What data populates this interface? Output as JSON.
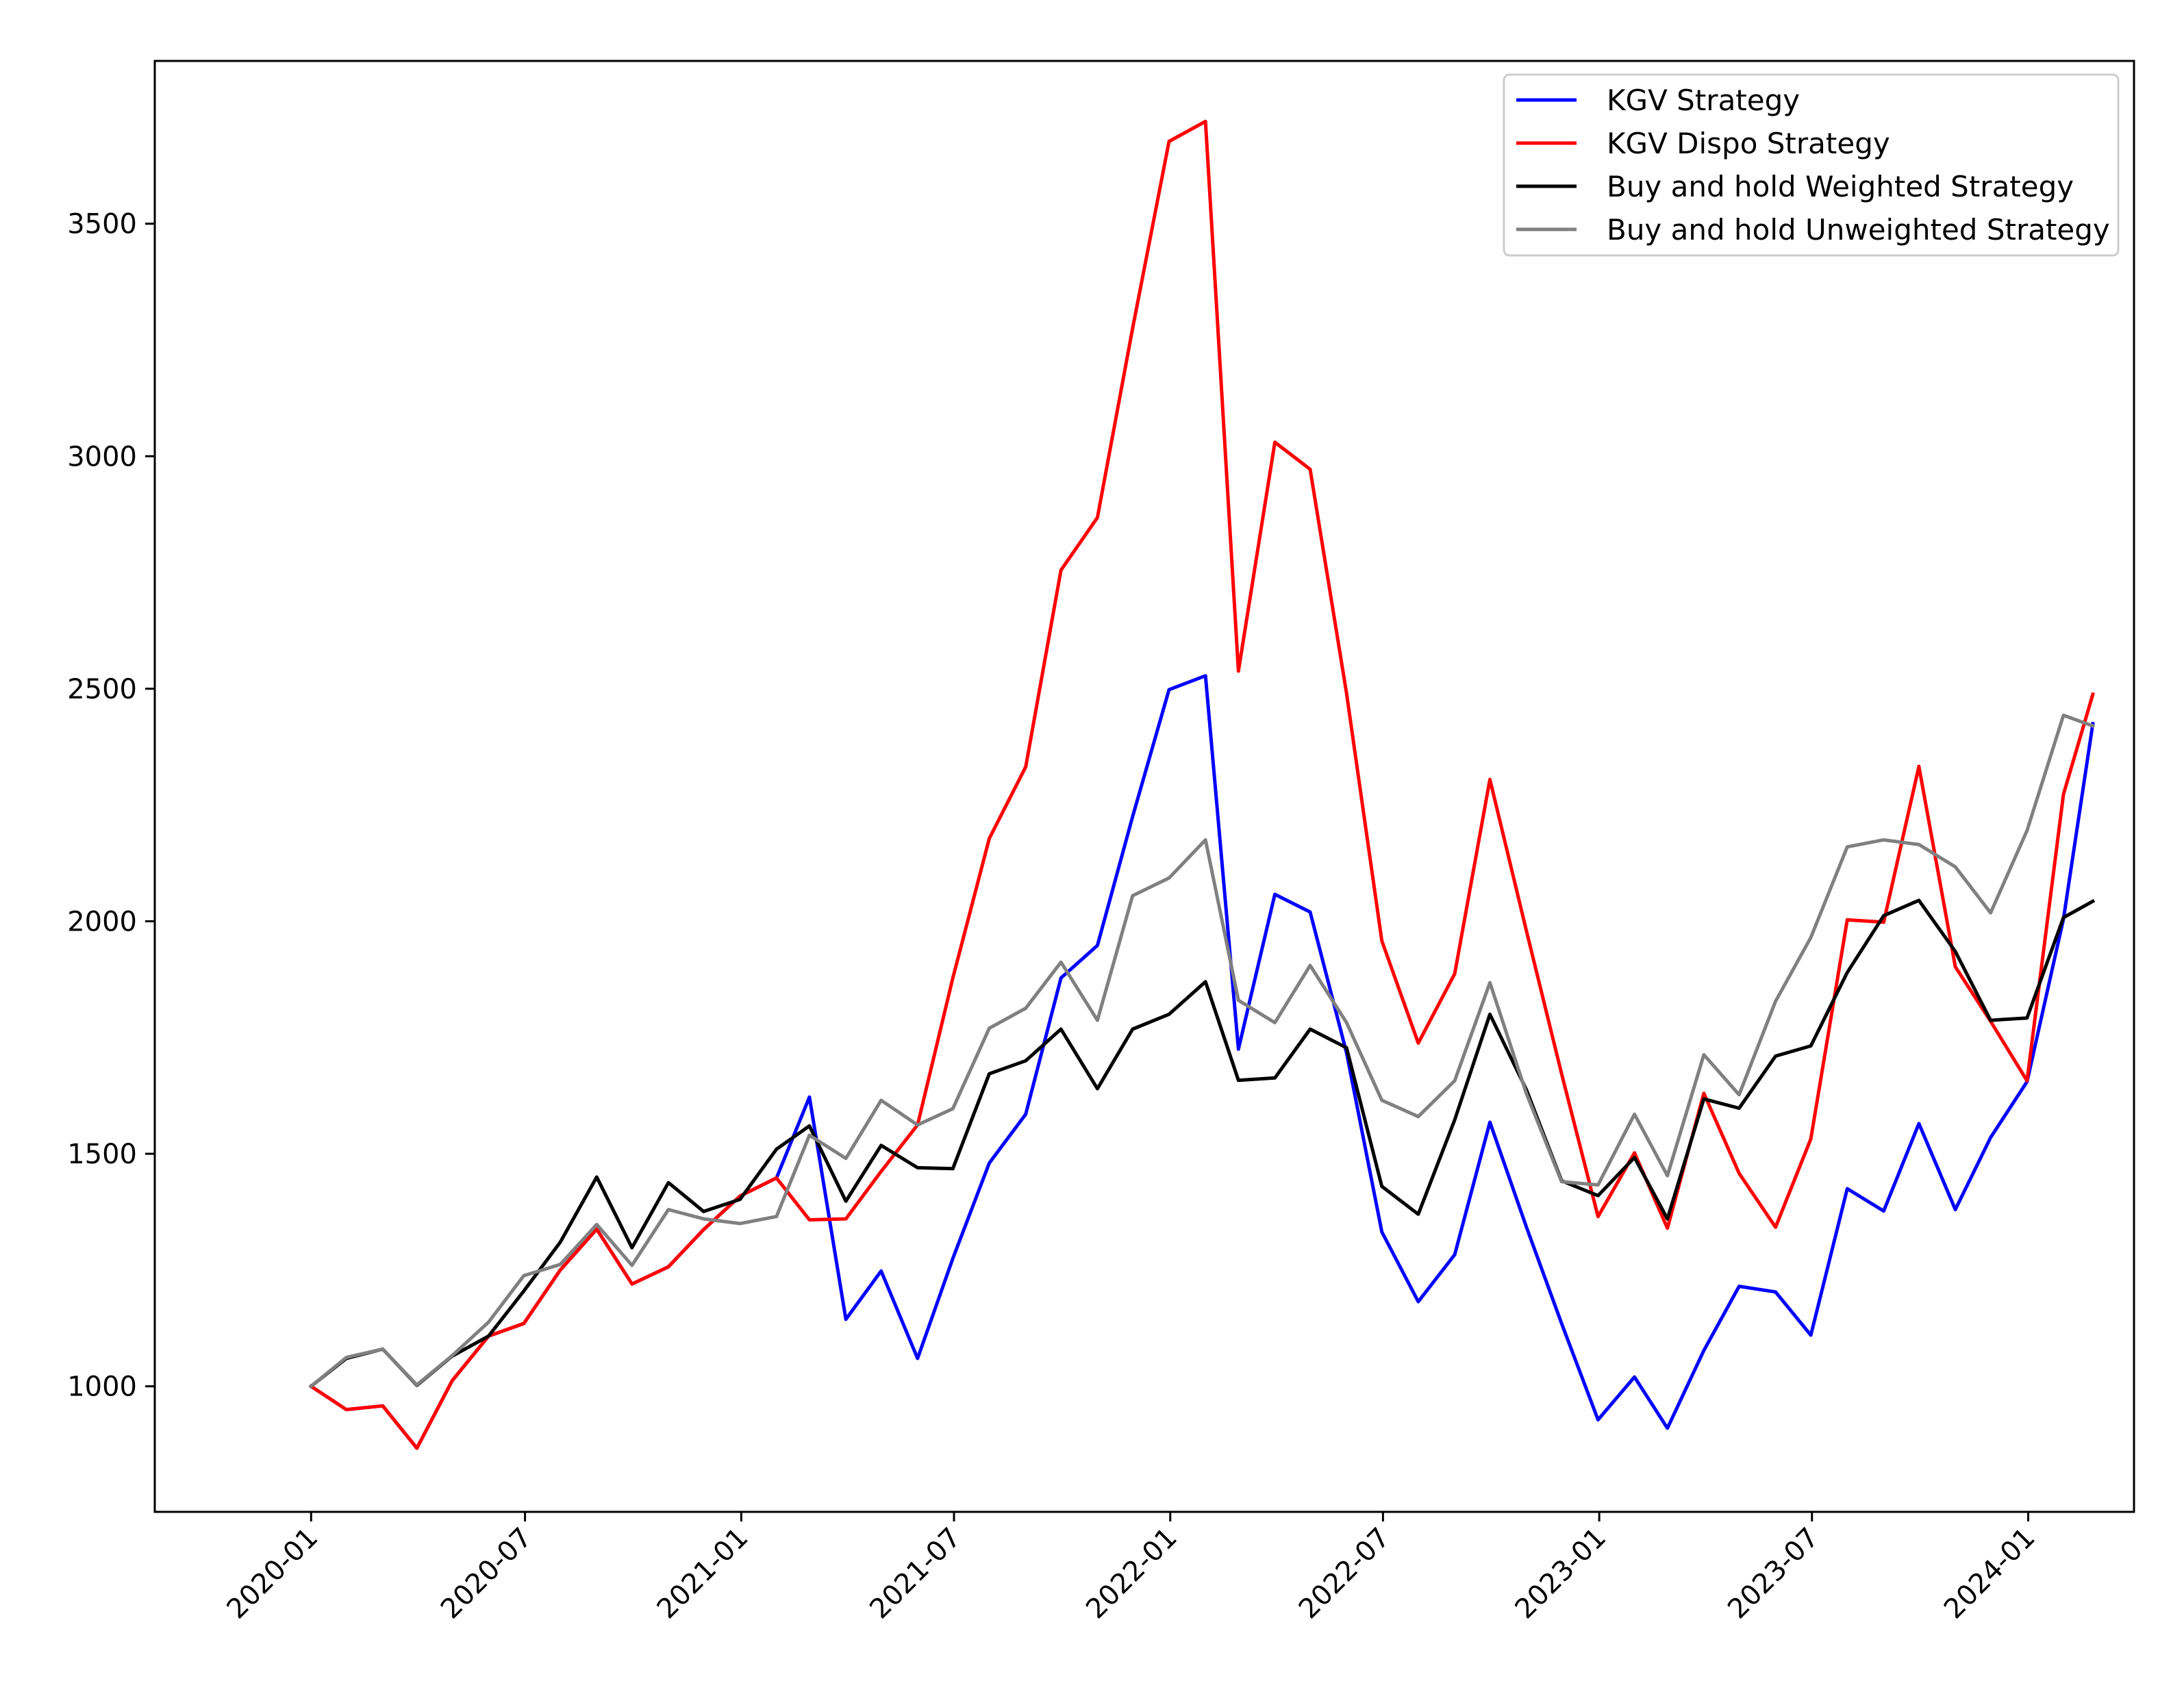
{
  "chart_data": {
    "type": "line",
    "title": "",
    "xlabel": "",
    "ylabel": "",
    "x_tick_labels": [
      "2020-01",
      "2020-07",
      "2021-01",
      "2021-07",
      "2022-01",
      "2022-07",
      "2023-01",
      "2023-07",
      "2024-01"
    ],
    "x_ticks": [
      "2020-01-01",
      "2020-07-01",
      "2021-01-01",
      "2021-07-01",
      "2022-01-01",
      "2022-07-01",
      "2023-01-01",
      "2023-07-01",
      "2024-01-01"
    ],
    "y_ticks": [
      1000,
      1500,
      2000,
      2500,
      3000,
      3500
    ],
    "xlim": [
      "2019-08-21",
      "2024-03-31"
    ],
    "ylim": [
      730,
      3850
    ],
    "grid": false,
    "legend_position": "top-right",
    "x": [
      "2020-01-01",
      "2020-01-31",
      "2020-03-02",
      "2020-03-31",
      "2020-04-30",
      "2020-05-31",
      "2020-06-30",
      "2020-07-31",
      "2020-08-31",
      "2020-09-30",
      "2020-10-31",
      "2020-11-30",
      "2020-12-31",
      "2021-01-31",
      "2021-02-28",
      "2021-03-31",
      "2021-04-30",
      "2021-05-31",
      "2021-06-30",
      "2021-07-31",
      "2021-08-31",
      "2021-09-30",
      "2021-10-31",
      "2021-11-30",
      "2021-12-31",
      "2022-01-31",
      "2022-02-28",
      "2022-03-31",
      "2022-04-30",
      "2022-05-31",
      "2022-06-30",
      "2022-07-31",
      "2022-08-31",
      "2022-09-30",
      "2022-10-31",
      "2022-11-30",
      "2022-12-31",
      "2023-01-31",
      "2023-02-28",
      "2023-03-31",
      "2023-04-30",
      "2023-05-31",
      "2023-06-30",
      "2023-07-31",
      "2023-08-31",
      "2023-09-30",
      "2023-10-31",
      "2023-11-30",
      "2023-12-31"
    ],
    "series": [
      {
        "name": "KGV Strategy",
        "color": "#0000ff",
        "values": [
          1000,
          950,
          958,
          867,
          1012,
          1108,
          1135,
          1250,
          1338,
          1220,
          1257,
          1337,
          1409,
          1448,
          1622,
          1144,
          1248,
          1060,
          1275,
          1480,
          1585,
          1878,
          1948,
          2225,
          2498,
          2528,
          1725,
          2058,
          2020,
          1717,
          1332,
          1182,
          1283,
          1568,
          1343,
          1135,
          928,
          1020,
          910,
          1077,
          1215,
          1203,
          1110,
          1425,
          1377,
          1565,
          1380,
          1535,
          1655
        ]
      },
      {
        "name": "KGV Dispo Strategy",
        "color": "#ff0000",
        "values": [
          1000,
          950,
          958,
          867,
          1012,
          1108,
          1135,
          1250,
          1338,
          1220,
          1257,
          1337,
          1409,
          1448,
          1358,
          1360,
          1462,
          1562,
          1878,
          2178,
          2332,
          2755,
          2868,
          3275,
          3677,
          3720,
          2538,
          3030,
          2972,
          2490,
          1958,
          1738,
          1887,
          2305,
          1980,
          1672,
          1365,
          1502,
          1340,
          1630,
          1458,
          1342,
          1532,
          2003,
          1998,
          2333,
          1902,
          1785,
          1657
        ]
      },
      {
        "name": "Buy and hold Weighted Strategy",
        "color": "#000000",
        "values": [
          1000,
          1060,
          1080,
          1002,
          1065,
          1108,
          1205,
          1310,
          1450,
          1298,
          1438,
          1376,
          1402,
          1510,
          1560,
          1398,
          1518,
          1470,
          1468,
          1672,
          1700,
          1768,
          1640,
          1768,
          1800,
          1870,
          1658,
          1663,
          1768,
          1728,
          1430,
          1370,
          1573,
          1800,
          1638,
          1442,
          1410,
          1492,
          1360,
          1618,
          1598,
          1710,
          1732,
          1890,
          2012,
          2045,
          1935,
          1787,
          1792
        ]
      },
      {
        "name": "Buy and hold Unweighted Strategy",
        "color": "#808080",
        "values": [
          1000,
          1062,
          1080,
          1003,
          1066,
          1138,
          1238,
          1262,
          1348,
          1260,
          1380,
          1360,
          1350,
          1365,
          1540,
          1490,
          1615,
          1562,
          1597,
          1770,
          1813,
          1912,
          1787,
          2055,
          2093,
          2175,
          1830,
          1782,
          1905,
          1782,
          1615,
          1580,
          1657,
          1868,
          1630,
          1440,
          1433,
          1585,
          1453,
          1713,
          1627,
          1828,
          1965,
          2160,
          2175,
          2165,
          2117,
          2018,
          2195
        ]
      }
    ],
    "series_end_x": [
      "2023-12-31",
      "2024-01-31",
      "2024-02-25"
    ],
    "series_end_values": {
      "KGV Strategy": [
        2005,
        2425
      ],
      "KGV Dispo Strategy": [
        2273,
        2488
      ],
      "Buy and hold Weighted Strategy": [
        2008,
        2043
      ],
      "Buy and hold Unweighted Strategy": [
        2443,
        2420
      ]
    }
  }
}
